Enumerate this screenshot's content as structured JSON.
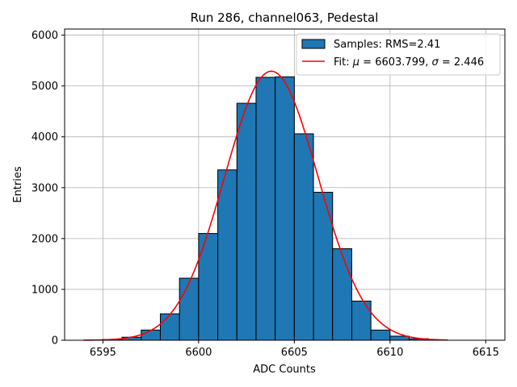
{
  "chart_data": {
    "type": "bar",
    "title": "Run 286, channel063, Pedestal",
    "xlabel": "ADC Counts",
    "ylabel": "Entries",
    "xlim": [
      6593.0,
      6616.0
    ],
    "ylim": [
      0,
      6120
    ],
    "xticks": [
      6595,
      6600,
      6605,
      6610,
      6615
    ],
    "yticks": [
      0,
      1000,
      2000,
      3000,
      4000,
      5000,
      6000
    ],
    "grid": true,
    "legend_position": "top-right",
    "colors": {
      "bars": "#1f77b4",
      "bar_edge": "#000000",
      "fit": "#ff0000",
      "grid": "#b0b0b0"
    },
    "histogram": {
      "name": "Samples: RMS=2.41",
      "bin_width": 1,
      "bin_left_edges": [
        6594,
        6595,
        6596,
        6597,
        6598,
        6599,
        6600,
        6601,
        6602,
        6603,
        6604,
        6605,
        6606,
        6607,
        6608,
        6609,
        6610,
        6611,
        6612
      ],
      "counts": [
        2,
        15,
        60,
        200,
        520,
        1220,
        2100,
        3350,
        4660,
        5170,
        5180,
        4060,
        2910,
        1800,
        770,
        200,
        80,
        30,
        8
      ]
    },
    "fit": {
      "name_prefix": "Fit: ",
      "mu_symbol": "μ",
      "mu_text": " = 6603.799, ",
      "sigma_symbol": "σ",
      "sigma_text": " = 2.446",
      "mu": 6603.799,
      "sigma": 2.446,
      "amplitude": 5290,
      "x_range": [
        6594,
        6613
      ]
    }
  }
}
